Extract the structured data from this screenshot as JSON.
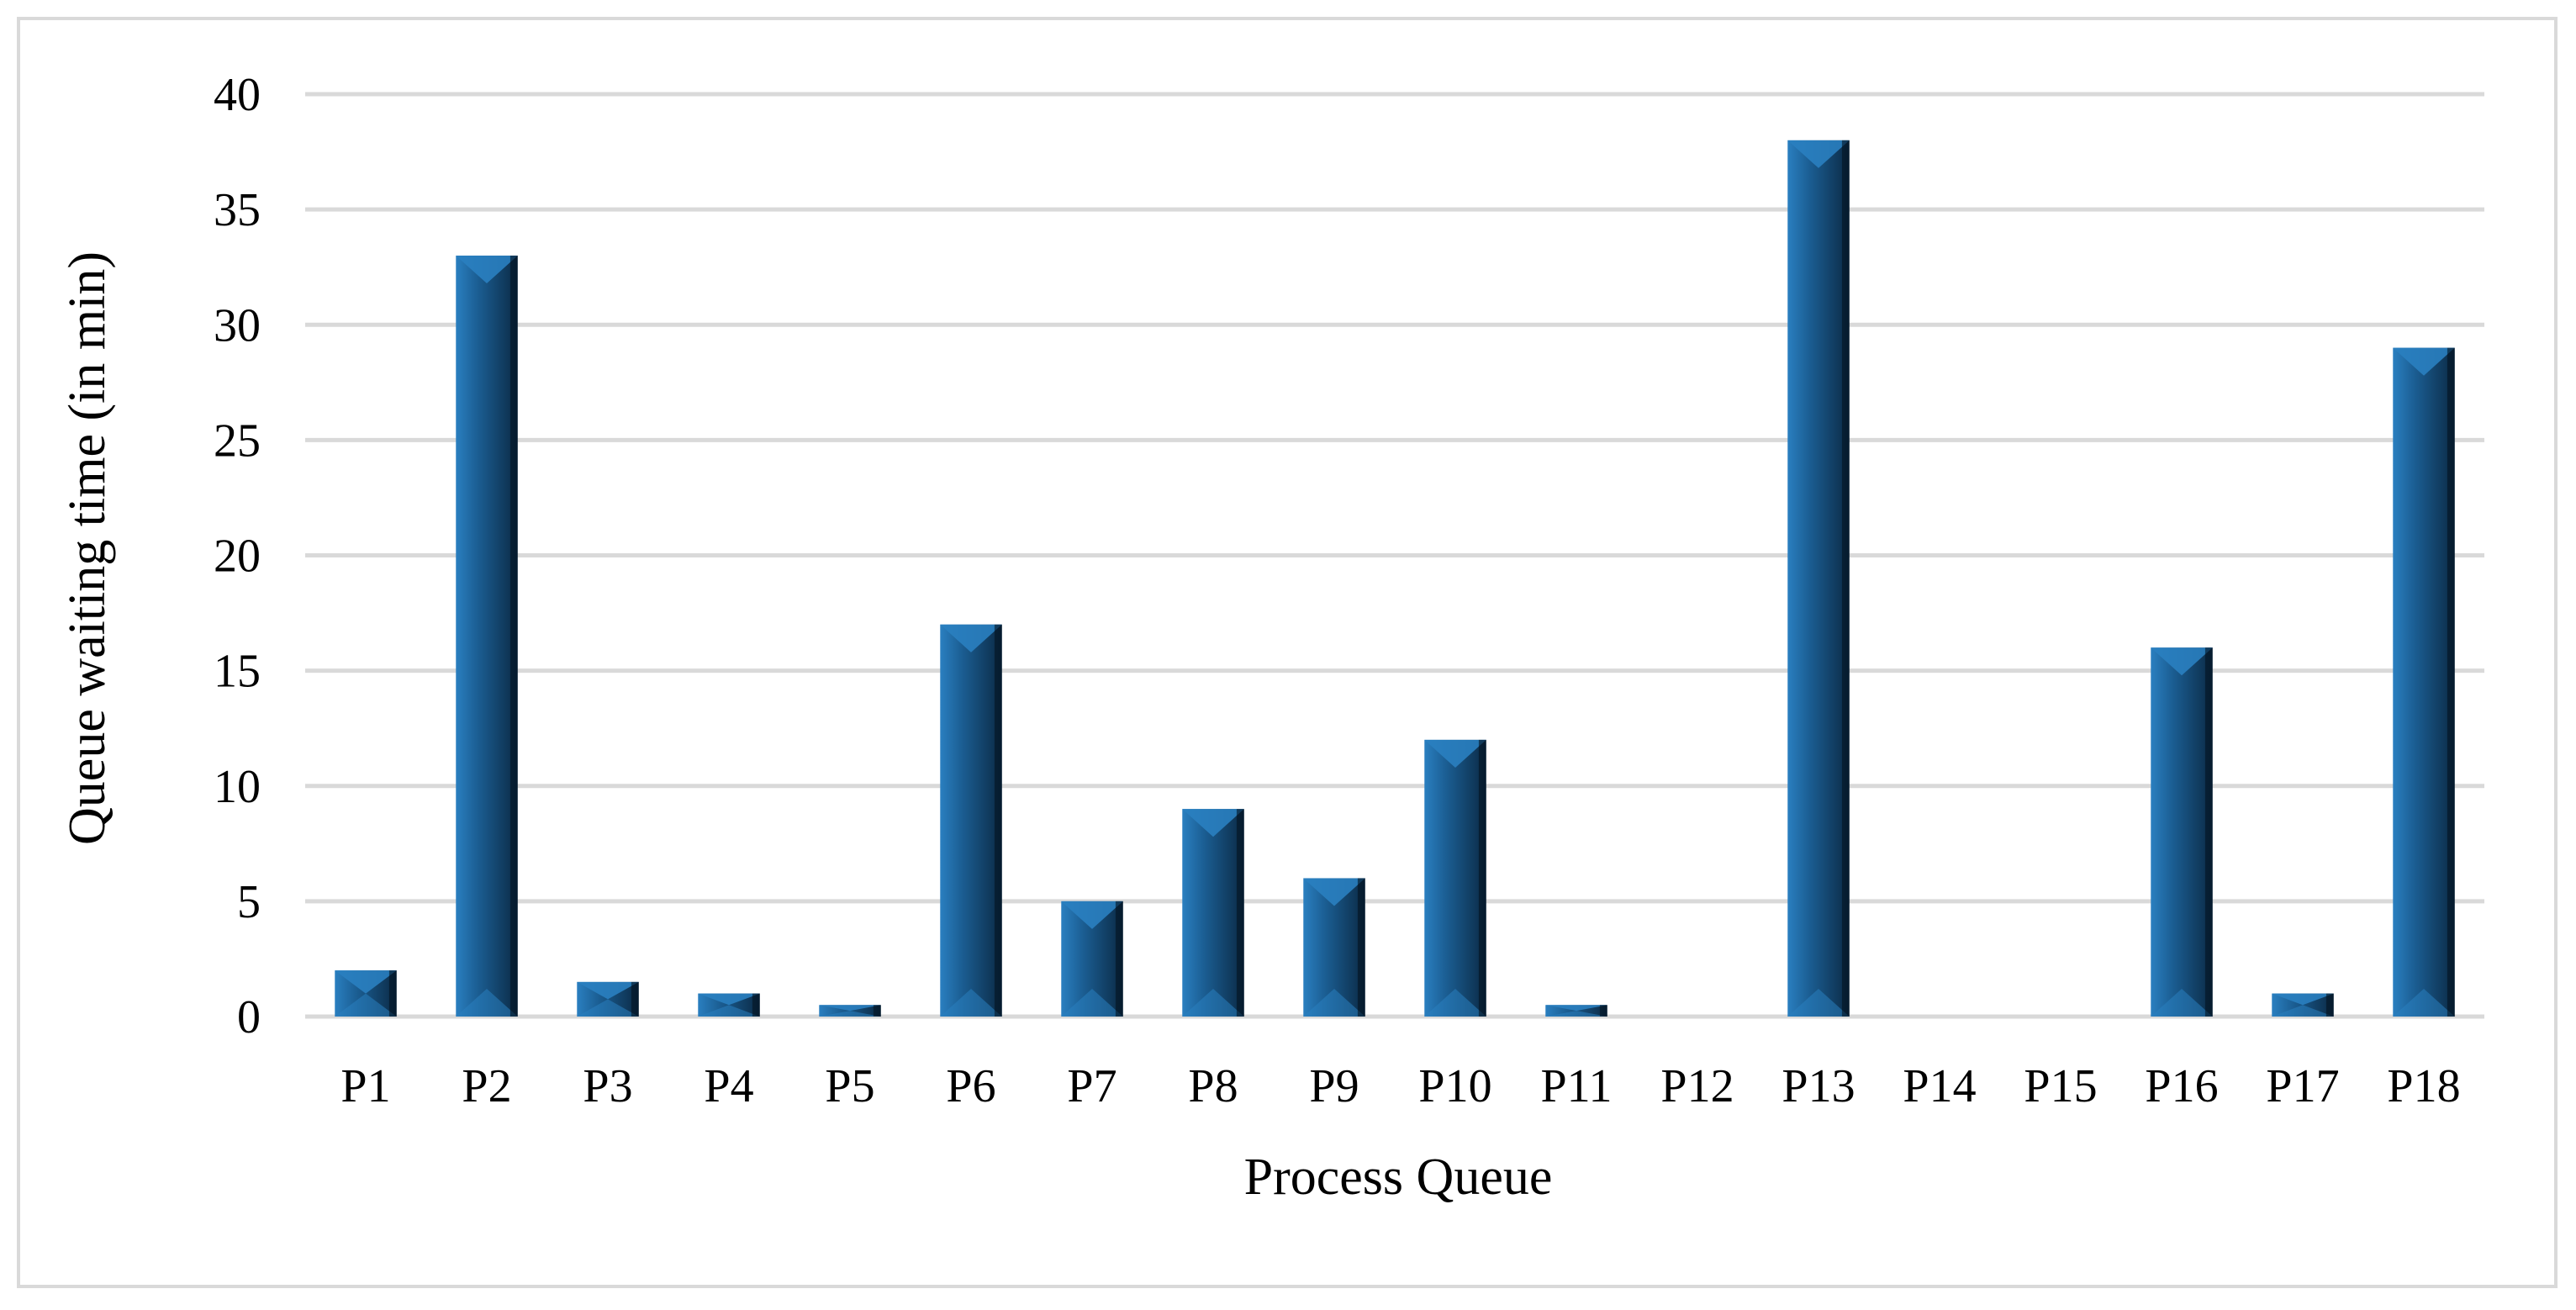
{
  "chart_data": {
    "type": "bar",
    "title": "",
    "xlabel": "Process Queue",
    "ylabel": "Queue waiting time (in min)",
    "categories": [
      "P1",
      "P2",
      "P3",
      "P4",
      "P5",
      "P6",
      "P7",
      "P8",
      "P9",
      "P10",
      "P11",
      "P12",
      "P13",
      "P14",
      "P15",
      "P16",
      "P17",
      "P18"
    ],
    "values": [
      2,
      33,
      1.5,
      1,
      0.5,
      17,
      5,
      9,
      6,
      12,
      0.5,
      0,
      38,
      0,
      0,
      16,
      1,
      29
    ],
    "ylim": [
      0,
      40
    ],
    "yticks": [
      0,
      5,
      10,
      15,
      20,
      25,
      30,
      35,
      40
    ],
    "grid": true,
    "legend": "none",
    "colors": {
      "bar_light": "#2a7fc0",
      "bar_main": "#1b5e93",
      "bar_dark": "#0b2a45",
      "grid": "#d9d9d9",
      "frame": "#d9d9d9"
    }
  }
}
